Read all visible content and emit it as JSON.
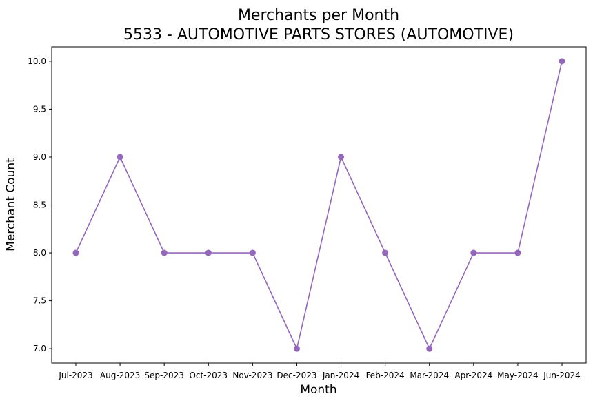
{
  "chart_data": {
    "type": "line",
    "title": "Merchants per Month",
    "subtitle": "5533 - AUTOMOTIVE PARTS STORES (AUTOMOTIVE)",
    "xlabel": "Month",
    "ylabel": "Merchant Count",
    "categories": [
      "Jul-2023",
      "Aug-2023",
      "Sep-2023",
      "Oct-2023",
      "Nov-2023",
      "Dec-2023",
      "Jan-2024",
      "Feb-2024",
      "Mar-2024",
      "Apr-2024",
      "May-2024",
      "Jun-2024"
    ],
    "series": [
      {
        "values": [
          8,
          9,
          8,
          8,
          8,
          7,
          9,
          8,
          7,
          8,
          8,
          10
        ]
      }
    ],
    "yticks": [
      "7.0",
      "7.5",
      "8.0",
      "8.5",
      "9.0",
      "9.5",
      "10.0"
    ],
    "ylim": [
      6.85,
      10.15
    ],
    "grid": false,
    "legend": "none",
    "colors": {
      "series": "#9467bd",
      "axis": "#000000"
    },
    "marker": "circle"
  }
}
